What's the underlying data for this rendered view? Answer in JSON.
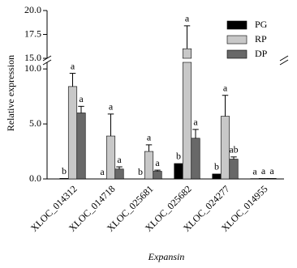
{
  "chart_data": {
    "type": "bar",
    "y_label": "Relative expression",
    "x_label": "Expansin",
    "categories": [
      "XLOC_014312",
      "XLOC_014718",
      "XLOC_025681",
      "XLOC_025682",
      "XLOC_024277",
      "XLOC_014955"
    ],
    "series": [
      {
        "name": "PG",
        "color": "#000000",
        "values": [
          0.05,
          0,
          0,
          1.4,
          0.45,
          0.03
        ],
        "errors": [
          null,
          null,
          null,
          null,
          null,
          null
        ],
        "letters": [
          "b",
          "a",
          "b",
          "b",
          "b",
          "a"
        ]
      },
      {
        "name": "RP",
        "color": "#c8c8c8",
        "values": [
          8.4,
          3.9,
          2.5,
          16.0,
          5.7,
          0.05
        ],
        "errors": [
          1.2,
          2.0,
          0.6,
          2.4,
          1.9,
          null
        ],
        "letters": [
          "a",
          "a",
          "a",
          "a",
          "a",
          "a"
        ]
      },
      {
        "name": "DP",
        "color": "#686868",
        "values": [
          6.0,
          0.9,
          0.7,
          3.7,
          1.8,
          0.05
        ],
        "errors": [
          0.6,
          0.2,
          0.1,
          0.8,
          0.2,
          null
        ],
        "letters": [
          "a",
          "a",
          "a",
          "a",
          "ab",
          "a"
        ]
      }
    ],
    "y_segments": [
      {
        "ylim": [
          0,
          10.6
        ],
        "yticks": [
          {
            "value": 0,
            "label": "0.0"
          },
          {
            "value": 5,
            "label": "5.0"
          },
          {
            "value": 10,
            "label": "10.0"
          }
        ]
      },
      {
        "ylim": [
          15,
          20
        ],
        "yticks": [
          {
            "value": 15,
            "label": "15.0"
          },
          17.5,
          {
            "value": 20,
            "label": "20.0"
          }
        ]
      }
    ],
    "legend": "upper right"
  }
}
